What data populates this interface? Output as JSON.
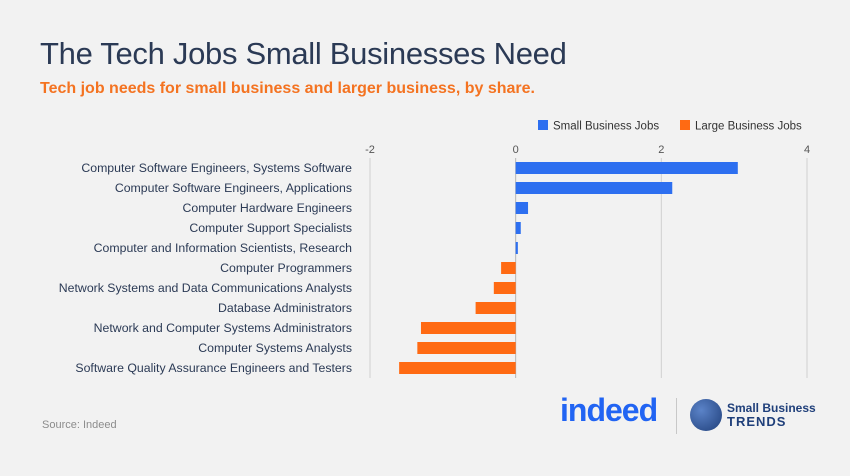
{
  "title": "The Tech Jobs Small Businesses Need",
  "subtitle": "Tech job needs for small business and larger business, by share.",
  "source": "Source: Indeed",
  "logos": {
    "indeed": "indeed",
    "sbt_line1": "Small Business",
    "sbt_line2": "TRENDS"
  },
  "colors": {
    "small": "#2d6ff0",
    "large": "#ff6a13"
  },
  "chart_data": {
    "type": "bar",
    "orientation": "horizontal",
    "xlim": [
      -2,
      4
    ],
    "xticks": [
      -2,
      0,
      2,
      4
    ],
    "legend": {
      "position": "top-right",
      "entries": [
        "Small Business Jobs",
        "Large Business Jobs"
      ]
    },
    "categories": [
      "Computer Software Engineers, Systems Software",
      "Computer Software Engineers, Applications",
      "Computer Hardware Engineers",
      "Computer Support Specialists",
      "Computer and Information Scientists, Research",
      "Computer Programmers",
      "Network Systems and Data Communications Analysts",
      "Database Administrators",
      "Network and Computer Systems Administrators",
      "Computer Systems Analysts",
      "Software Quality Assurance Engineers and Testers"
    ],
    "values": [
      3.05,
      2.15,
      0.17,
      0.07,
      0.03,
      -0.2,
      -0.3,
      -0.55,
      -1.3,
      -1.35,
      -1.6
    ],
    "series_of_each": [
      "Small Business Jobs",
      "Small Business Jobs",
      "Small Business Jobs",
      "Small Business Jobs",
      "Small Business Jobs",
      "Large Business Jobs",
      "Large Business Jobs",
      "Large Business Jobs",
      "Large Business Jobs",
      "Large Business Jobs",
      "Large Business Jobs"
    ]
  }
}
